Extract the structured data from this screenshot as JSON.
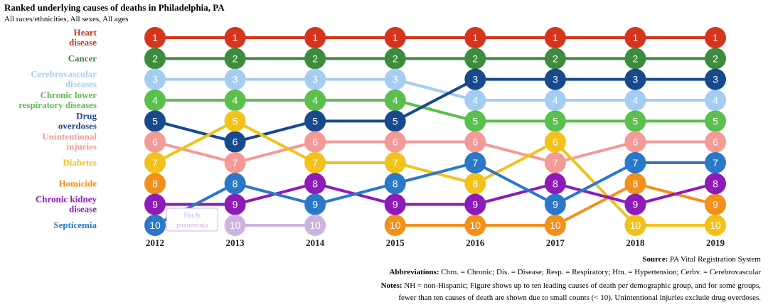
{
  "chart_data": {
    "type": "bump",
    "title": "Ranked underlying causes of deaths in Philadelphia, PA",
    "subtitle": "All races/ethnicities, All sexes, All ages",
    "x": [
      2012,
      2013,
      2014,
      2015,
      2016,
      2017,
      2018,
      2019
    ],
    "rank_range": [
      1,
      10
    ],
    "series": [
      {
        "name": "Heart disease",
        "label_lines": [
          "Heart",
          "disease"
        ],
        "color": "#d4351c",
        "ranks": [
          1,
          1,
          1,
          1,
          1,
          1,
          1,
          1
        ]
      },
      {
        "name": "Cancer",
        "label_lines": [
          "Cancer"
        ],
        "color": "#3d8b3d",
        "ranks": [
          2,
          2,
          2,
          2,
          2,
          2,
          2,
          2
        ]
      },
      {
        "name": "Cerebrovascular diseases",
        "label_lines": [
          "Cerebrovascular",
          "diseases"
        ],
        "color": "#a4cdf2",
        "ranks": [
          3,
          3,
          3,
          3,
          4,
          4,
          4,
          4
        ]
      },
      {
        "name": "Chronic lower respiratory diseases",
        "label_lines": [
          "Chronic lower",
          "respiratory diseases"
        ],
        "color": "#5bbf4e",
        "ranks": [
          4,
          4,
          4,
          4,
          5,
          5,
          5,
          5
        ]
      },
      {
        "name": "Drug overdoses",
        "label_lines": [
          "Drug",
          "overdoses"
        ],
        "color": "#174a8c",
        "ranks": [
          5,
          6,
          5,
          5,
          3,
          3,
          3,
          3
        ]
      },
      {
        "name": "Unintentional injuries",
        "label_lines": [
          "Unintentional",
          "injuries"
        ],
        "color": "#f49a97",
        "ranks": [
          6,
          7,
          6,
          6,
          6,
          7,
          6,
          6
        ]
      },
      {
        "name": "Diabetes",
        "label_lines": [
          "Diabetes"
        ],
        "color": "#f2c21b",
        "ranks": [
          7,
          5,
          7,
          7,
          8,
          6,
          10,
          10
        ]
      },
      {
        "name": "Homicide",
        "label_lines": [
          "Homicide"
        ],
        "color": "#f39019",
        "ranks": [
          8,
          null,
          null,
          10,
          10,
          10,
          8,
          9
        ]
      },
      {
        "name": "Chronic kidney disease",
        "label_lines": [
          "Chronic kidney",
          "disease"
        ],
        "color": "#8e1bb8",
        "ranks": [
          9,
          9,
          8,
          9,
          9,
          8,
          9,
          8
        ]
      },
      {
        "name": "Septicemia",
        "label_lines": [
          "Septicemia"
        ],
        "color": "#2b78c9",
        "ranks": [
          10,
          8,
          9,
          8,
          7,
          9,
          7,
          7
        ]
      },
      {
        "name": "Flu & pneumonia",
        "label_lines": [
          "Flu &",
          "pneumonia"
        ],
        "color": "#cdb4e0",
        "ranks": [
          null,
          10,
          10,
          null,
          null,
          null,
          null,
          null
        ],
        "inline_label": true
      }
    ]
  },
  "footer": {
    "source_label": "Source:",
    "source_text": "PA Vital Registration System",
    "abbr_label": "Abbreviations:",
    "abbr_text": "Chrn. = Chronic; Dis. = Disease; Resp. = Respiratory; Htn. = Hypertension; Cerbv. = Cerebrovascular",
    "notes_label": "Notes:",
    "notes_text_1": "NH = non-Hispanic; Figure shows up to ten leading causes of death per demographic group, and for some groups,",
    "notes_text_2": "fewer than ten causes of death are shown due to small counts (< 10). Unintentional injuries exclude drug overdoses."
  }
}
